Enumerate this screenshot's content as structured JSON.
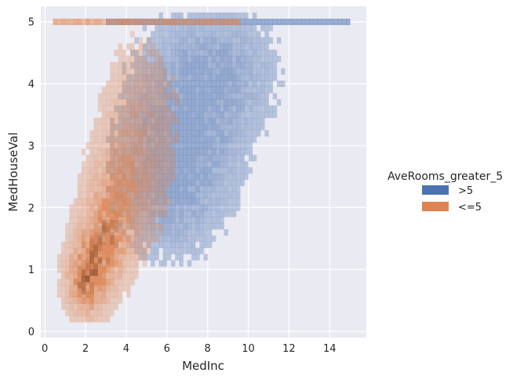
{
  "chart_data": {
    "type": "heatmap",
    "subtype": "bivariate-histogram",
    "title": "",
    "xlabel": "MedInc",
    "ylabel": "MedHouseVal",
    "xlim": [
      -0.2,
      15.8
    ],
    "ylim": [
      -0.1,
      5.25
    ],
    "xticks": [
      0,
      2,
      4,
      6,
      8,
      10,
      12,
      14
    ],
    "yticks": [
      0,
      1,
      2,
      3,
      4,
      5
    ],
    "grid": true,
    "hue_variable": "AveRooms_greater_5",
    "legend_position": "right",
    "legend": [
      {
        "label": ">5",
        "color": "#4c72b0"
      },
      {
        "label": "<=5",
        "color": "#dd8452"
      }
    ],
    "series": [
      {
        "name": ">5",
        "color": "#4c72b0",
        "description": "spread over MedInc 3-15, concentrated 5-10, strong band at MedHouseVal 5",
        "clusters": [
          {
            "x": 7.0,
            "y": 3.4,
            "sx": 1.6,
            "sy": 0.9,
            "weight": 0.35
          },
          {
            "x": 6.0,
            "y": 2.5,
            "sx": 1.4,
            "sy": 0.7,
            "weight": 0.3
          },
          {
            "x": 9.0,
            "y": 4.2,
            "sx": 1.5,
            "sy": 0.6,
            "weight": 0.2
          }
        ],
        "cap_band": {
          "y": 5.0,
          "x_range": [
            3.0,
            15.0
          ],
          "weight": 0.55
        }
      },
      {
        "name": "<=5",
        "color": "#dd8452",
        "description": "dense diagonal cloud peaking around MedInc 2-3, MedHouseVal 0.7-1.5",
        "clusters": [
          {
            "x": 2.1,
            "y": 0.85,
            "sx": 0.6,
            "sy": 0.35,
            "weight": 1.0
          },
          {
            "x": 2.9,
            "y": 1.5,
            "sx": 0.75,
            "sy": 0.45,
            "weight": 0.75
          },
          {
            "x": 3.8,
            "y": 2.3,
            "sx": 0.9,
            "sy": 0.6,
            "weight": 0.45
          },
          {
            "x": 4.6,
            "y": 3.3,
            "sx": 1.1,
            "sy": 0.8,
            "weight": 0.22
          }
        ],
        "cap_band": {
          "y": 5.0,
          "x_range": [
            0.5,
            9.5
          ],
          "weight": 0.4
        }
      }
    ]
  }
}
